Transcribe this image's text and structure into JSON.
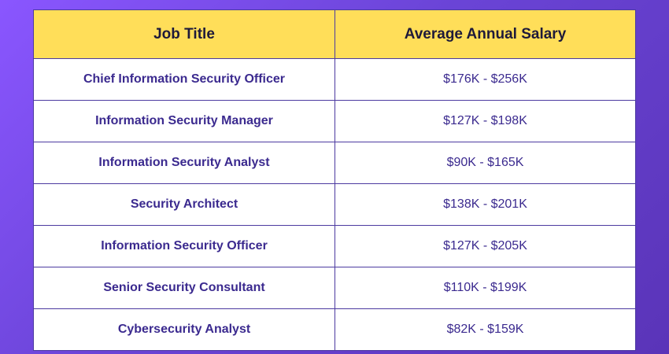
{
  "table": {
    "headers": [
      "Job Title",
      "Average Annual Salary"
    ],
    "rows": [
      {
        "title": "Chief Information Security Officer",
        "salary": "$176K - $256K"
      },
      {
        "title": "Information Security Manager",
        "salary": "$127K - $198K"
      },
      {
        "title": "Information Security Analyst",
        "salary": "$90K - $165K"
      },
      {
        "title": "Security Architect",
        "salary": "$138K - $201K"
      },
      {
        "title": "Information Security Officer",
        "salary": "$127K - $205K"
      },
      {
        "title": "Senior Security Consultant",
        "salary": "$110K - $199K"
      },
      {
        "title": "Cybersecurity Analyst",
        "salary": "$82K - $159K"
      }
    ]
  },
  "colors": {
    "header_bg": "#ffde59",
    "text": "#3b2a8f",
    "background_gradient_start": "#8a56ff",
    "background_gradient_end": "#5a34b8"
  }
}
